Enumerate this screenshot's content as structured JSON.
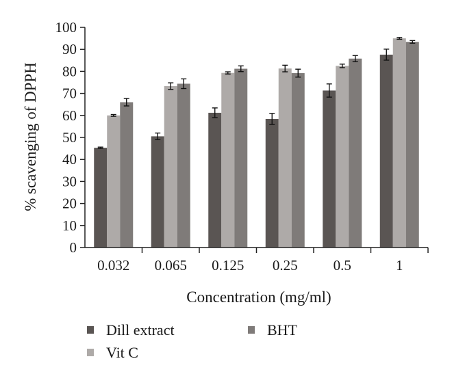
{
  "chart_data": {
    "type": "bar",
    "title": "",
    "xlabel": "Concentration (mg/ml)",
    "ylabel": "% scavenging of DPPH",
    "ylim": [
      0,
      100
    ],
    "ytick_step": 10,
    "grid": false,
    "legend_position": "bottom",
    "categories": [
      "0.032",
      "0.065",
      "0.125",
      "0.25",
      "0.5",
      "1"
    ],
    "series": [
      {
        "name": "Dill extract",
        "color": "#5a5553",
        "values": [
          45.3,
          50.5,
          61.2,
          58.4,
          71.3,
          87.6
        ],
        "errors": [
          0.3,
          1.5,
          2.2,
          2.5,
          3.0,
          2.5
        ]
      },
      {
        "name": "Vit C",
        "color": "#aeaaa8",
        "values": [
          60.0,
          73.3,
          79.3,
          81.3,
          82.5,
          95.0
        ],
        "errors": [
          0.4,
          1.5,
          0.5,
          1.5,
          0.8,
          0.4
        ]
      },
      {
        "name": "BHT",
        "color": "#7f7b79",
        "values": [
          66.0,
          74.4,
          81.2,
          79.2,
          85.8,
          93.4
        ],
        "errors": [
          1.7,
          2.2,
          1.3,
          1.8,
          1.4,
          0.6
        ]
      }
    ]
  }
}
